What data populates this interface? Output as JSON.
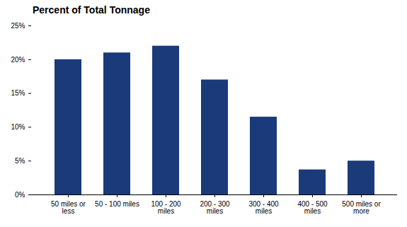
{
  "chart_data": {
    "type": "bar",
    "title": "Percent of Total  Tonnage",
    "categories": [
      "50 miles or\nless",
      "50 - 100 miles",
      "100 - 200\nmiles",
      "200 - 300\nmiles",
      "300 - 400\nmiles",
      "400 - 500\nmiles",
      "500 miles or\nmore"
    ],
    "values": [
      20.0,
      21.0,
      22.0,
      17.0,
      11.5,
      3.7,
      5.0
    ],
    "color": "#1a3a7a",
    "ylim": [
      0,
      25
    ],
    "yticks": [
      {
        "value": 0,
        "label": "0%"
      },
      {
        "value": 5,
        "label": "5%"
      },
      {
        "value": 10,
        "label": "10%"
      },
      {
        "value": 15,
        "label": "15%"
      },
      {
        "value": 20,
        "label": "20%"
      },
      {
        "value": 25,
        "label": "25%"
      }
    ],
    "grid": false
  }
}
